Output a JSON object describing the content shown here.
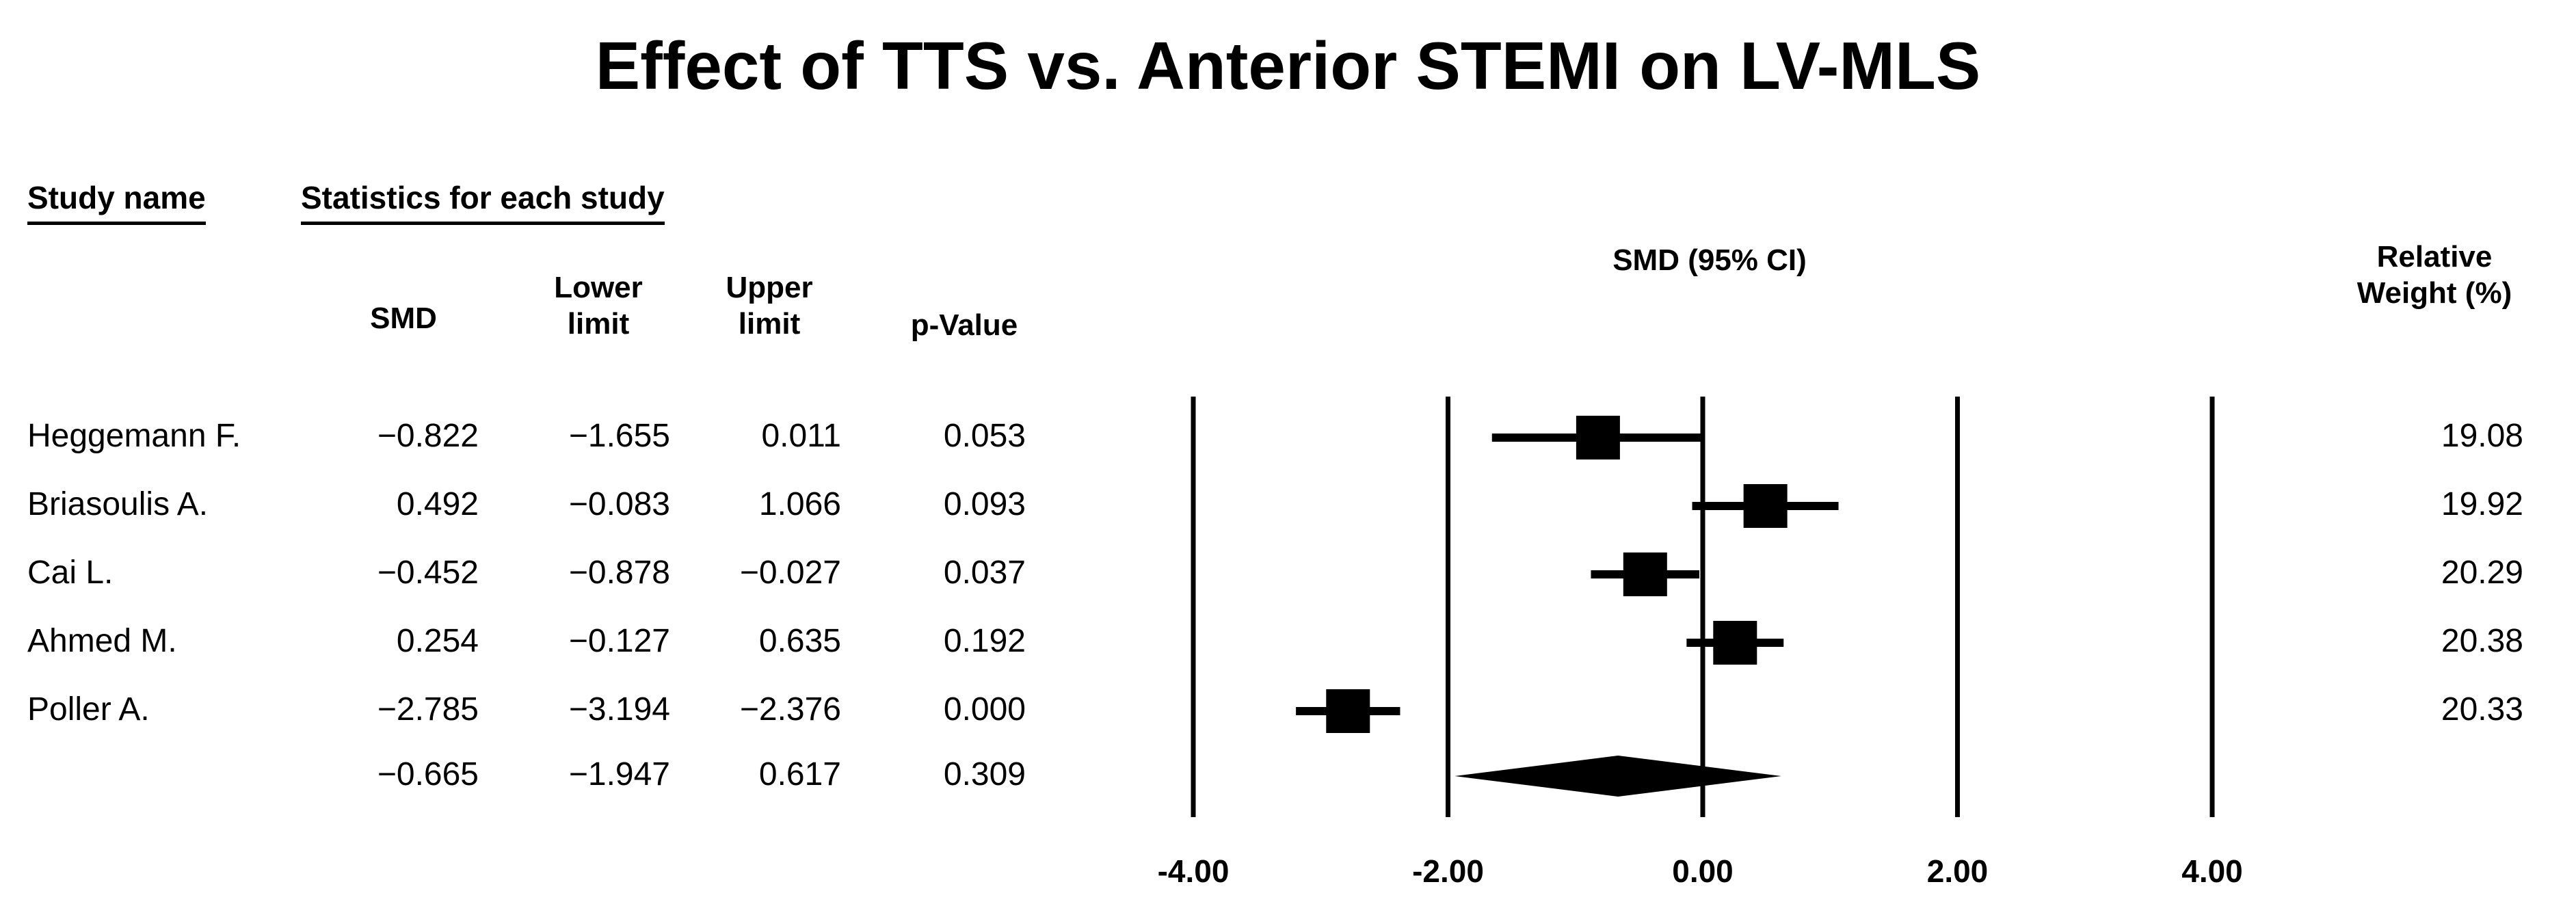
{
  "header": {
    "study_name": "Study name",
    "statistics": "Statistics for each study",
    "smd": "SMD",
    "lower_1": "Lower",
    "lower_2": "limit",
    "upper_1": "Upper",
    "upper_2": "limit",
    "pvalue": "p-Value",
    "plot_label": "SMD (95% CI)",
    "weight_1": "Relative",
    "weight_2": "Weight (%)"
  },
  "chart_data": {
    "type": "forest",
    "title": "Effect of TTS vs. Anterior STEMI on LV-MLS",
    "xlabel": "SMD (95% CI)",
    "xlim": [
      -4,
      4
    ],
    "ticks": [
      -4,
      -2,
      0,
      2,
      4
    ],
    "tick_labels": [
      "-4.00",
      "-2.00",
      "0.00",
      "2.00",
      "4.00"
    ],
    "studies": [
      {
        "name": "Heggemann F.",
        "smd": -0.822,
        "lower": -1.655,
        "upper": 0.011,
        "p": 0.053,
        "smd_text": "−0.822",
        "lower_text": "−1.655",
        "upper_text": "0.011",
        "p_text": "0.053",
        "weight": "19.08"
      },
      {
        "name": "Briasoulis A.",
        "smd": 0.492,
        "lower": -0.083,
        "upper": 1.066,
        "p": 0.093,
        "smd_text": "0.492",
        "lower_text": "−0.083",
        "upper_text": "1.066",
        "p_text": "0.093",
        "weight": "19.92"
      },
      {
        "name": "Cai L.",
        "smd": -0.452,
        "lower": -0.878,
        "upper": -0.027,
        "p": 0.037,
        "smd_text": "−0.452",
        "lower_text": "−0.878",
        "upper_text": "−0.027",
        "p_text": "0.037",
        "weight": "20.29"
      },
      {
        "name": "Ahmed M.",
        "smd": 0.254,
        "lower": -0.127,
        "upper": 0.635,
        "p": 0.192,
        "smd_text": "0.254",
        "lower_text": "−0.127",
        "upper_text": "0.635",
        "p_text": "0.192",
        "weight": "20.38"
      },
      {
        "name": "Poller A.",
        "smd": -2.785,
        "lower": -3.194,
        "upper": -2.376,
        "p": 0.0,
        "smd_text": "−2.785",
        "lower_text": "−3.194",
        "upper_text": "−2.376",
        "p_text": "0.000",
        "weight": "20.33"
      }
    ],
    "pooled": {
      "smd": -0.665,
      "lower": -1.947,
      "upper": 0.617,
      "p": 0.309,
      "smd_text": "−0.665",
      "lower_text": "−1.947",
      "upper_text": "0.617",
      "p_text": "0.309"
    }
  }
}
